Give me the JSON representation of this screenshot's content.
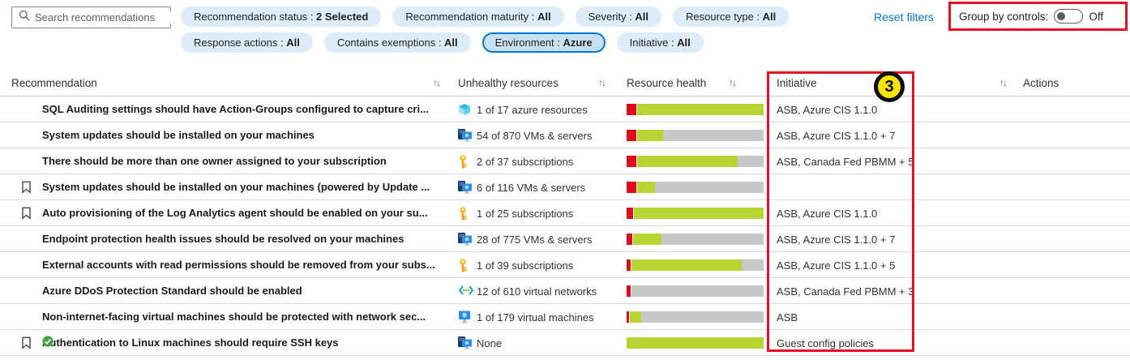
{
  "search": {
    "placeholder": "Search recommendations"
  },
  "filters": {
    "reset_label": "Reset filters",
    "row1": [
      {
        "label": "Recommendation status",
        "value": "2 Selected",
        "selected": false
      },
      {
        "label": "Recommendation maturity",
        "value": "All",
        "selected": false
      },
      {
        "label": "Severity",
        "value": "All",
        "selected": false
      },
      {
        "label": "Resource type",
        "value": "All",
        "selected": false
      }
    ],
    "row2": [
      {
        "label": "Response actions",
        "value": "All",
        "selected": false
      },
      {
        "label": "Contains exemptions",
        "value": "All",
        "selected": false
      },
      {
        "label": "Environment",
        "value": "Azure",
        "selected": true
      },
      {
        "label": "Initiative",
        "value": "All",
        "selected": false
      }
    ]
  },
  "group_by": {
    "label": "Group by controls:",
    "state": "Off"
  },
  "annotations": {
    "step_badge": "3"
  },
  "colors": {
    "accent_blue": "#0078d4",
    "pill_bg": "#deecf9",
    "pill_selected_bg": "#c7e0f4",
    "annotation_red": "#e81123",
    "badge_yellow": "#f5e400",
    "bar_red": "#e20b1e",
    "bar_green": "#b8d432",
    "bar_gray": "#c7c7c7",
    "check_green": "#46a046"
  },
  "table": {
    "columns": [
      "Recommendation",
      "Unhealthy resources",
      "Resource health",
      "Initiative",
      "Actions"
    ],
    "rows": [
      {
        "bookmark": false,
        "title": "SQL Auditing settings should have Action-Groups configured to capture cri...",
        "check": false,
        "resource_icon": "azure-resource-icon",
        "unhealthy": "1 of 17 azure resources",
        "bar": {
          "red": 7,
          "green": 93,
          "gray": 0
        },
        "initiative": "ASB, Azure CIS 1.1.0"
      },
      {
        "bookmark": false,
        "title": "System updates should be installed on your machines",
        "check": false,
        "resource_icon": "server-icon",
        "unhealthy": "54 of 870 VMs & servers",
        "bar": {
          "red": 7,
          "green": 19,
          "gray": 74
        },
        "initiative": "ASB, Azure CIS 1.1.0 + 7"
      },
      {
        "bookmark": false,
        "title": "There should be more than one owner assigned to your subscription",
        "check": false,
        "resource_icon": "key-icon",
        "unhealthy": "2 of 37 subscriptions",
        "bar": {
          "red": 7,
          "green": 74,
          "gray": 19
        },
        "initiative": "ASB, Canada Fed PBMM + 5"
      },
      {
        "bookmark": true,
        "title": "System updates should be installed on your machines (powered by Update ...",
        "check": false,
        "resource_icon": "server-icon",
        "unhealthy": "6 of 116 VMs & servers",
        "bar": {
          "red": 7,
          "green": 13,
          "gray": 80
        },
        "initiative": ""
      },
      {
        "bookmark": true,
        "title": "Auto provisioning of the Log Analytics agent should be enabled on your su...",
        "check": false,
        "resource_icon": "key-icon",
        "unhealthy": "1 of 25 subscriptions",
        "bar": {
          "red": 5,
          "green": 95,
          "gray": 0
        },
        "initiative": "ASB, Azure CIS 1.1.0"
      },
      {
        "bookmark": false,
        "title": "Endpoint protection health issues should be resolved on your machines",
        "check": false,
        "resource_icon": "server-icon",
        "unhealthy": "28 of 775 VMs & servers",
        "bar": {
          "red": 4,
          "green": 21,
          "gray": 75
        },
        "initiative": "ASB, Azure CIS 1.1.0 + 7"
      },
      {
        "bookmark": false,
        "title": "External accounts with read permissions should be removed from your subs...",
        "check": false,
        "resource_icon": "key-icon",
        "unhealthy": "1 of 39 subscriptions",
        "bar": {
          "red": 3,
          "green": 81,
          "gray": 16
        },
        "initiative": "ASB, Azure CIS 1.1.0 + 5"
      },
      {
        "bookmark": false,
        "title": "Azure DDoS Protection Standard should be enabled",
        "check": false,
        "resource_icon": "vnet-icon",
        "unhealthy": "12 of 610 virtual networks",
        "bar": {
          "red": 3,
          "green": 0,
          "gray": 97
        },
        "initiative": "ASB, Canada Fed PBMM + 3"
      },
      {
        "bookmark": false,
        "title": "Non-internet-facing virtual machines should be protected with network sec...",
        "check": false,
        "resource_icon": "vm-icon",
        "unhealthy": "1 of 179 virtual machines",
        "bar": {
          "red": 2,
          "green": 8,
          "gray": 90
        },
        "initiative": "ASB"
      },
      {
        "bookmark": true,
        "title": "Authentication to Linux machines should require SSH keys",
        "check": true,
        "resource_icon": "server-icon",
        "unhealthy": "None",
        "bar": {
          "red": 0,
          "green": 100,
          "gray": 0
        },
        "initiative": "Guest config policies"
      }
    ]
  }
}
